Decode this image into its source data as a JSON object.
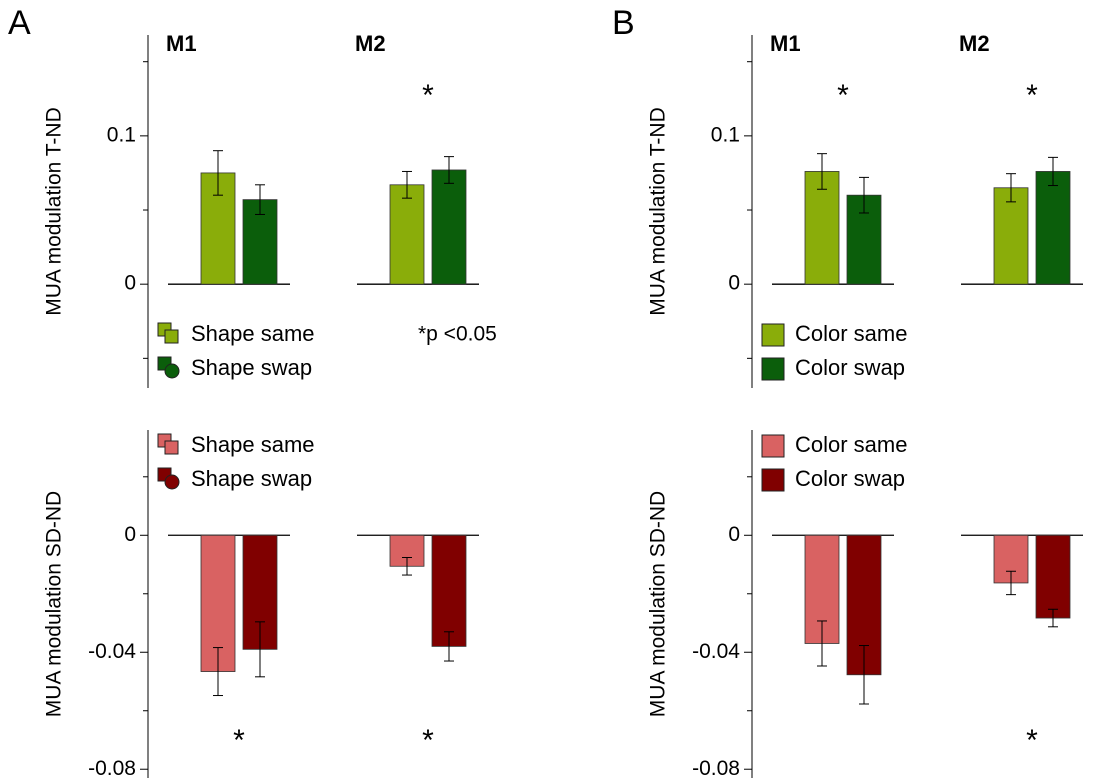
{
  "chart_data": [
    {
      "type": "bar",
      "panel_label": "A",
      "ylabel": "MUA modulation T-ND",
      "categories": [
        "M1",
        "M2"
      ],
      "series": [
        {
          "name": "Shape same",
          "color": "#8aad0a",
          "values": [
            0.075,
            0.067
          ],
          "errors": [
            0.015,
            0.009
          ]
        },
        {
          "name": "Shape swap",
          "color": "#0b5e0b",
          "values": [
            0.057,
            0.077
          ],
          "errors": [
            0.01,
            0.009
          ]
        }
      ],
      "ylim": [
        -0.07,
        0.168
      ],
      "yticks": [
        0,
        0.1
      ],
      "minor_yticks": [
        -0.05,
        0.05,
        0.15
      ],
      "significant": [
        false,
        true
      ],
      "significance_marker": "*",
      "note": "*p <0.05",
      "legend": "lower left",
      "legend_icon": "shape"
    },
    {
      "type": "bar",
      "ylabel": "MUA modulation SD-ND",
      "categories": [
        null,
        null
      ],
      "series": [
        {
          "name": "Shape same",
          "color": "#d96262",
          "values": [
            -0.0466,
            -0.0106
          ],
          "errors": [
            0.0082,
            0.003
          ]
        },
        {
          "name": "Shape swap",
          "color": "#800000",
          "values": [
            -0.039,
            -0.038
          ],
          "errors": [
            0.0094,
            0.005
          ]
        }
      ],
      "ylim": [
        -0.083,
        0.036
      ],
      "yticks": [
        0,
        -0.04,
        -0.08
      ],
      "minor_yticks": [
        0.02,
        -0.02,
        -0.06
      ],
      "significant": [
        true,
        true
      ],
      "significance_marker": "*",
      "legend": "upper left",
      "legend_icon": "shape"
    },
    {
      "type": "bar",
      "panel_label": "B",
      "ylabel": "MUA modulation T-ND",
      "categories": [
        "M1",
        "M2"
      ],
      "series": [
        {
          "name": "Color same",
          "color": "#8aad0a",
          "values": [
            0.076,
            0.065
          ],
          "errors": [
            0.012,
            0.0095
          ]
        },
        {
          "name": "Color swap",
          "color": "#0b5e0b",
          "values": [
            0.06,
            0.076
          ],
          "errors": [
            0.012,
            0.0095
          ]
        }
      ],
      "ylim": [
        -0.07,
        0.168
      ],
      "yticks": [
        0,
        0.1
      ],
      "minor_yticks": [
        -0.05,
        0.05,
        0.15
      ],
      "significant": [
        true,
        true
      ],
      "significance_marker": "*",
      "legend": "lower left",
      "legend_icon": "square"
    },
    {
      "type": "bar",
      "ylabel": "MUA modulation SD-ND",
      "categories": [
        null,
        null
      ],
      "series": [
        {
          "name": "Color same",
          "color": "#d96262",
          "values": [
            -0.037,
            -0.0163
          ],
          "errors": [
            0.0077,
            0.004
          ]
        },
        {
          "name": "Color swap",
          "color": "#800000",
          "values": [
            -0.0477,
            -0.0283
          ],
          "errors": [
            0.01,
            0.003
          ]
        }
      ],
      "ylim": [
        -0.083,
        0.036
      ],
      "yticks": [
        0,
        -0.04,
        -0.08
      ],
      "minor_yticks": [
        0.02,
        -0.02,
        -0.06
      ],
      "significant": [
        false,
        true
      ],
      "significance_marker": "*",
      "legend": "upper left",
      "legend_icon": "square"
    }
  ]
}
